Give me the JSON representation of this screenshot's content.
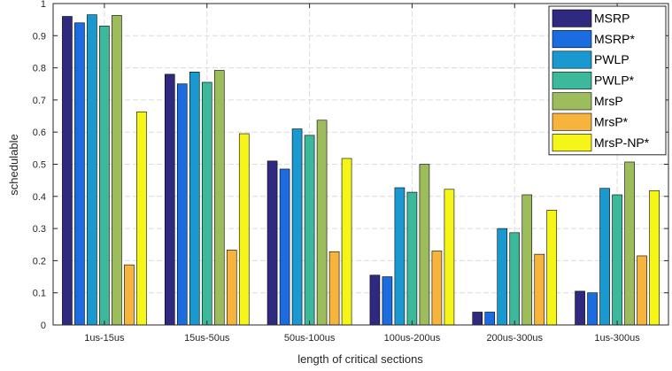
{
  "chart_data": {
    "type": "bar",
    "xlabel": "length of critical sections",
    "ylabel": "schedulable",
    "ylim": [
      0,
      1
    ],
    "yticks": [
      0,
      0.1,
      0.2,
      0.3,
      0.4,
      0.5,
      0.6,
      0.7,
      0.8,
      0.9,
      1
    ],
    "ytick_labels": [
      "0",
      "0.1",
      "0.2",
      "0.3",
      "0.4",
      "0.5",
      "0.6",
      "0.7",
      "0.8",
      "0.9",
      "1"
    ],
    "grid": true,
    "legend_position": "top-right",
    "categories": [
      "1us-15us",
      "15us-50us",
      "50us-100us",
      "100us-200us",
      "200us-300us",
      "1us-300us"
    ],
    "series": [
      {
        "name": "MSRP",
        "color": "#2f2a80",
        "values": [
          0.96,
          0.78,
          0.51,
          0.155,
          0.04,
          0.105
        ]
      },
      {
        "name": "MSRP*",
        "color": "#1b6ce0",
        "values": [
          0.94,
          0.75,
          0.485,
          0.15,
          0.04,
          0.1
        ]
      },
      {
        "name": "PWLP",
        "color": "#1a99d0",
        "values": [
          0.965,
          0.787,
          0.61,
          0.427,
          0.3,
          0.425
        ]
      },
      {
        "name": "PWLP*",
        "color": "#3cb99a",
        "values": [
          0.93,
          0.755,
          0.59,
          0.413,
          0.287,
          0.405
        ]
      },
      {
        "name": "MrsP",
        "color": "#9dbc5c",
        "values": [
          0.963,
          0.792,
          0.637,
          0.5,
          0.405,
          0.507
        ]
      },
      {
        "name": "MrsP*",
        "color": "#f7b43c",
        "values": [
          0.187,
          0.233,
          0.228,
          0.23,
          0.22,
          0.215
        ]
      },
      {
        "name": "MrsP-NP*",
        "color": "#f6f51a",
        "values": [
          0.663,
          0.595,
          0.518,
          0.422,
          0.357,
          0.418
        ]
      }
    ]
  }
}
